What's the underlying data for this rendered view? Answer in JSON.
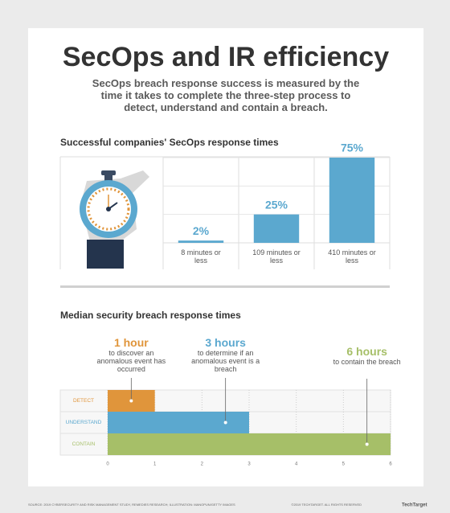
{
  "title": "SecOps and IR efficiency",
  "subtitle": "SecOps breach response success is measured by the time it takes to complete the three-step process to detect, understand and contain a breach.",
  "chart_data": [
    {
      "type": "bar",
      "title": "Successful companies' SecOps response times",
      "categories": [
        "8 minutes or less",
        "109 minutes or less",
        "410 minutes or less"
      ],
      "values": [
        2,
        25,
        75
      ],
      "value_labels": [
        "2%",
        "25%",
        "75%"
      ],
      "color": "#5ba8cf",
      "ylim": [
        0,
        100
      ],
      "yticks": [
        25,
        50,
        75
      ],
      "grid": true
    },
    {
      "type": "barh",
      "title": "Median security breach response times",
      "categories": [
        "DETECT",
        "UNDERSTAND",
        "CONTAIN"
      ],
      "values": [
        1,
        3,
        6
      ],
      "colors": [
        "#e0953b",
        "#5ba8cf",
        "#a6bf68"
      ],
      "annotations": [
        {
          "headline": "1 hour",
          "text": "to discover an anomalous event has occurred"
        },
        {
          "headline": "3 hours",
          "text": "to determine if an anomalous event is a breach"
        },
        {
          "headline": "6 hours",
          "text": "to contain the breach"
        }
      ],
      "xlim": [
        0,
        6
      ],
      "xticks": [
        0,
        1,
        2,
        3,
        4,
        5,
        6
      ],
      "grid": true
    }
  ],
  "footer": {
    "source": "SOURCE: 2019 CYBERSECURITY AND RISK MANAGEMENT STUDY, REMEDIES RESEARCH; ILLUSTRATION: MANOPUN/GETTY IMAGES",
    "copyright": "©2019 TECHTARGET. ALL RIGHTS RESERVED",
    "logo": "TechTarget"
  }
}
